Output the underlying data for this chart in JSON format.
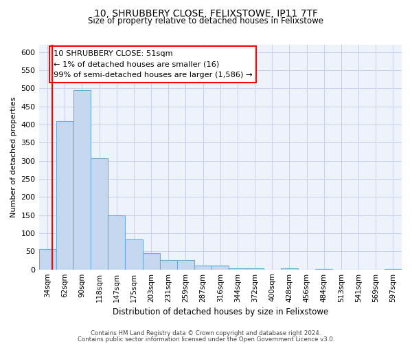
{
  "title": "10, SHRUBBERY CLOSE, FELIXSTOWE, IP11 7TF",
  "subtitle": "Size of property relative to detached houses in Felixstowe",
  "xlabel": "Distribution of detached houses by size in Felixstowe",
  "ylabel": "Number of detached properties",
  "bar_labels": [
    "34sqm",
    "62sqm",
    "90sqm",
    "118sqm",
    "147sqm",
    "175sqm",
    "203sqm",
    "231sqm",
    "259sqm",
    "287sqm",
    "316sqm",
    "344sqm",
    "372sqm",
    "400sqm",
    "428sqm",
    "456sqm",
    "484sqm",
    "513sqm",
    "541sqm",
    "569sqm",
    "597sqm"
  ],
  "bar_values": [
    57,
    410,
    495,
    307,
    150,
    82,
    44,
    26,
    26,
    11,
    11,
    3,
    3,
    0,
    3,
    0,
    2,
    0,
    0,
    0,
    2
  ],
  "bar_color": "#c5d8f0",
  "bar_edge_color": "#6aabdb",
  "annotation_line1": "10 SHRUBBERY CLOSE: 51sqm",
  "annotation_line2": "← 1% of detached houses are smaller (16)",
  "annotation_line3": "99% of semi-detached houses are larger (1,586) →",
  "vline_x_index": 0,
  "ylim": [
    0,
    620
  ],
  "yticks": [
    0,
    50,
    100,
    150,
    200,
    250,
    300,
    350,
    400,
    450,
    500,
    550,
    600
  ],
  "footer_line1": "Contains HM Land Registry data © Crown copyright and database right 2024.",
  "footer_line2": "Contains public sector information licensed under the Open Government Licence v3.0.",
  "bg_color": "#eef2fb",
  "grid_color": "#c8d0e8"
}
